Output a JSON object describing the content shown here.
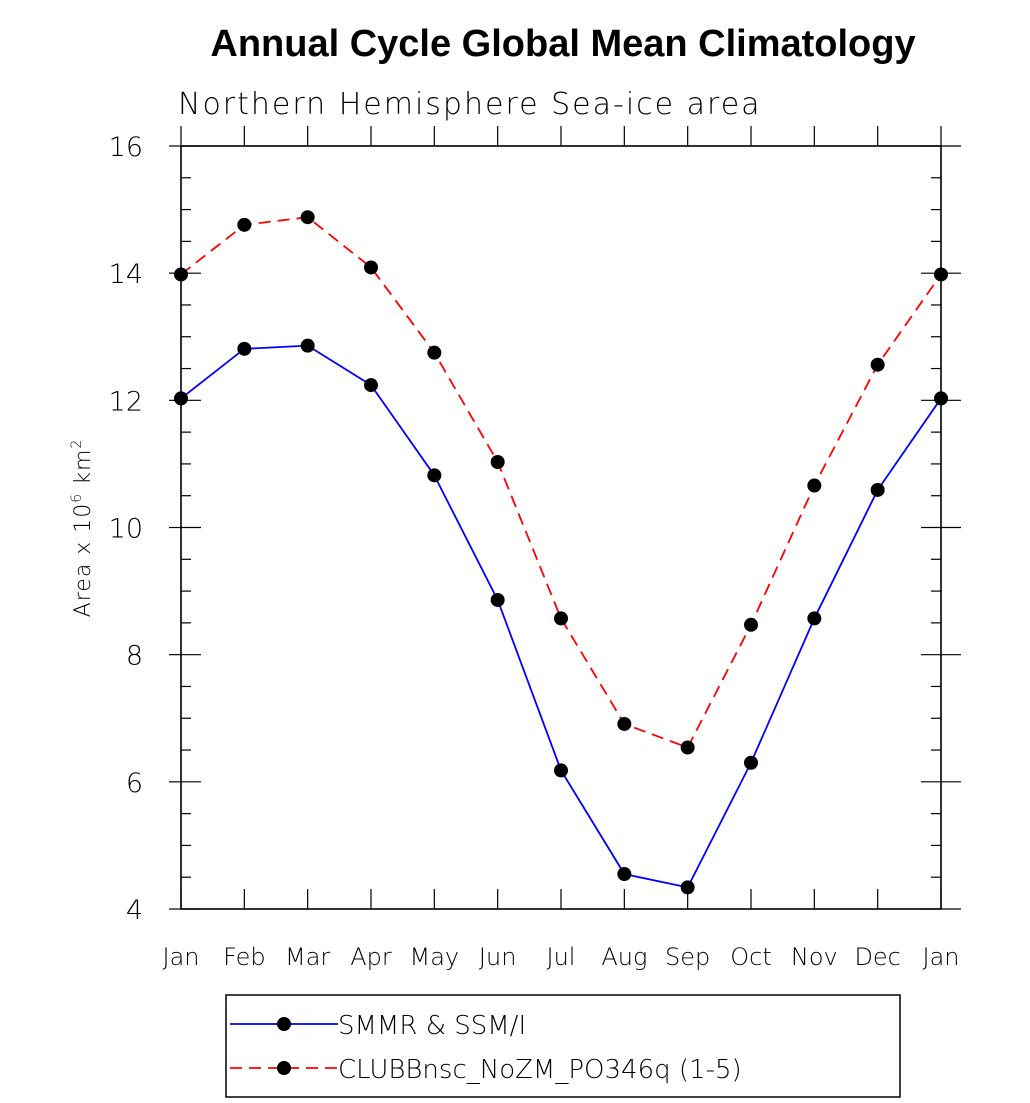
{
  "chart_data": {
    "type": "line",
    "title": "Annual Cycle Global Mean Climatology",
    "subtitle": "Northern Hemisphere Sea-ice area",
    "ylabel": "Area x 10",
    "ylabel_exp": "6",
    "ylabel_unit": " km",
    "ylabel_unit_exp": "2",
    "xlabel": "",
    "categories": [
      "Jan",
      "Feb",
      "Mar",
      "Apr",
      "May",
      "Jun",
      "Jul",
      "Aug",
      "Sep",
      "Oct",
      "Nov",
      "Dec",
      "Jan"
    ],
    "ylim": [
      4,
      16
    ],
    "yticks": [
      4,
      6,
      8,
      10,
      12,
      14,
      16
    ],
    "grid": false,
    "legend_placement": "bottom",
    "series": [
      {
        "name": "SMMR & SSM/I",
        "color": "#0000ff",
        "line_style": "solid",
        "marker": "filled-circle",
        "values": [
          12.03,
          12.81,
          12.86,
          12.24,
          10.82,
          8.86,
          6.18,
          4.55,
          4.34,
          6.3,
          8.57,
          10.59,
          12.03
        ]
      },
      {
        "name": "CLUBBnsc_NoZM_PO346q (1-5)",
        "color": "#ff0000",
        "line_style": "dashed",
        "marker": "filled-circle",
        "values": [
          13.98,
          14.76,
          14.88,
          14.09,
          12.75,
          11.03,
          8.57,
          6.91,
          6.54,
          8.47,
          10.66,
          12.56,
          13.98
        ]
      }
    ]
  }
}
